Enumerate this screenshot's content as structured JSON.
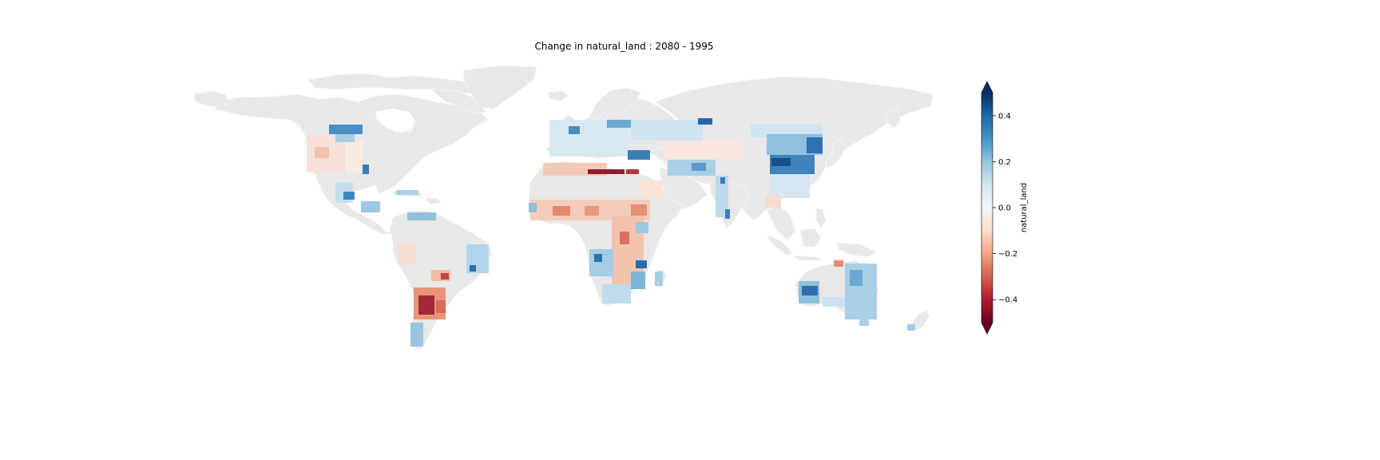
{
  "title": "Change in natural_land : 2080 - 1995",
  "colorbar": {
    "label": "natural_land",
    "min": -0.5,
    "max": 0.5,
    "extend": "both",
    "colormap": "RdBu",
    "ticks": [
      {
        "value": 0.4,
        "label": "0.4"
      },
      {
        "value": 0.2,
        "label": "0.2"
      },
      {
        "value": 0.0,
        "label": "0.0"
      },
      {
        "value": -0.2,
        "label": "−0.2"
      },
      {
        "value": -0.4,
        "label": "−0.4"
      }
    ]
  },
  "colors": {
    "land": "#e8e8e8",
    "coast": "#f4f4f4",
    "stops": [
      "#67001f",
      "#b2182b",
      "#d6604d",
      "#f4a582",
      "#fddbc7",
      "#f7f7f7",
      "#d1e5f0",
      "#92c5de",
      "#4393c3",
      "#2166ac",
      "#053061"
    ]
  }
}
